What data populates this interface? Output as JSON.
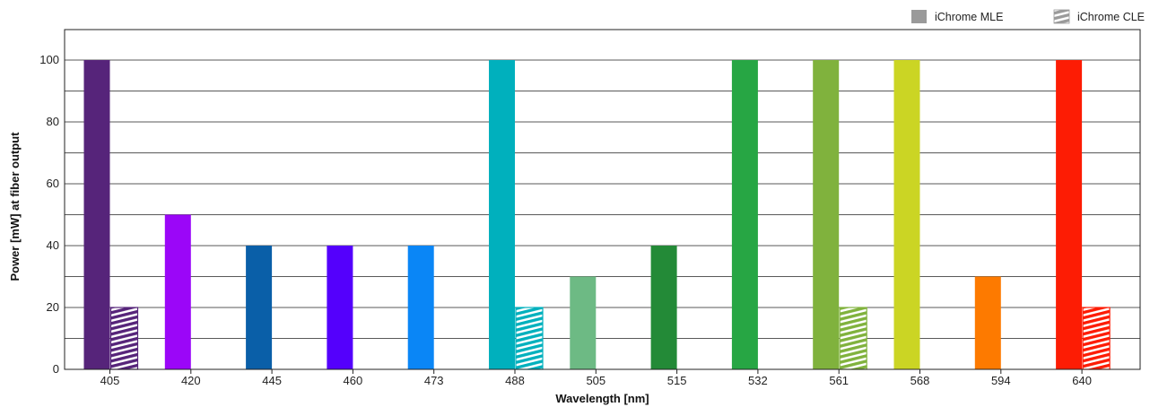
{
  "chart_data": {
    "type": "bar",
    "xlabel": "Wavelength [nm]",
    "ylabel": "Power [mW] at fiber output",
    "ylim": [
      0,
      110
    ],
    "yticks": [
      0,
      20,
      40,
      60,
      80,
      100
    ],
    "grid": true,
    "legend_placement": "top-right",
    "categories": [
      "405",
      "420",
      "445",
      "460",
      "473",
      "488",
      "505",
      "515",
      "532",
      "561",
      "568",
      "594",
      "640"
    ],
    "bar_colors": [
      "#56247a",
      "#9b06f8",
      "#0a5fa8",
      "#5400fc",
      "#0a86f6",
      "#00b0bd",
      "#6dba84",
      "#238a37",
      "#27a644",
      "#80b23d",
      "#cbd524",
      "#fd7a00",
      "#fd1c04"
    ],
    "series": [
      {
        "name": "iChrome MLE",
        "pattern": "solid",
        "values": [
          100,
          50,
          40,
          40,
          40,
          100,
          30,
          40,
          100,
          100,
          100,
          30,
          100
        ]
      },
      {
        "name": "iChrome CLE",
        "pattern": "hatched",
        "values": [
          20,
          null,
          null,
          null,
          null,
          20,
          null,
          null,
          null,
          20,
          null,
          null,
          20
        ]
      }
    ]
  }
}
